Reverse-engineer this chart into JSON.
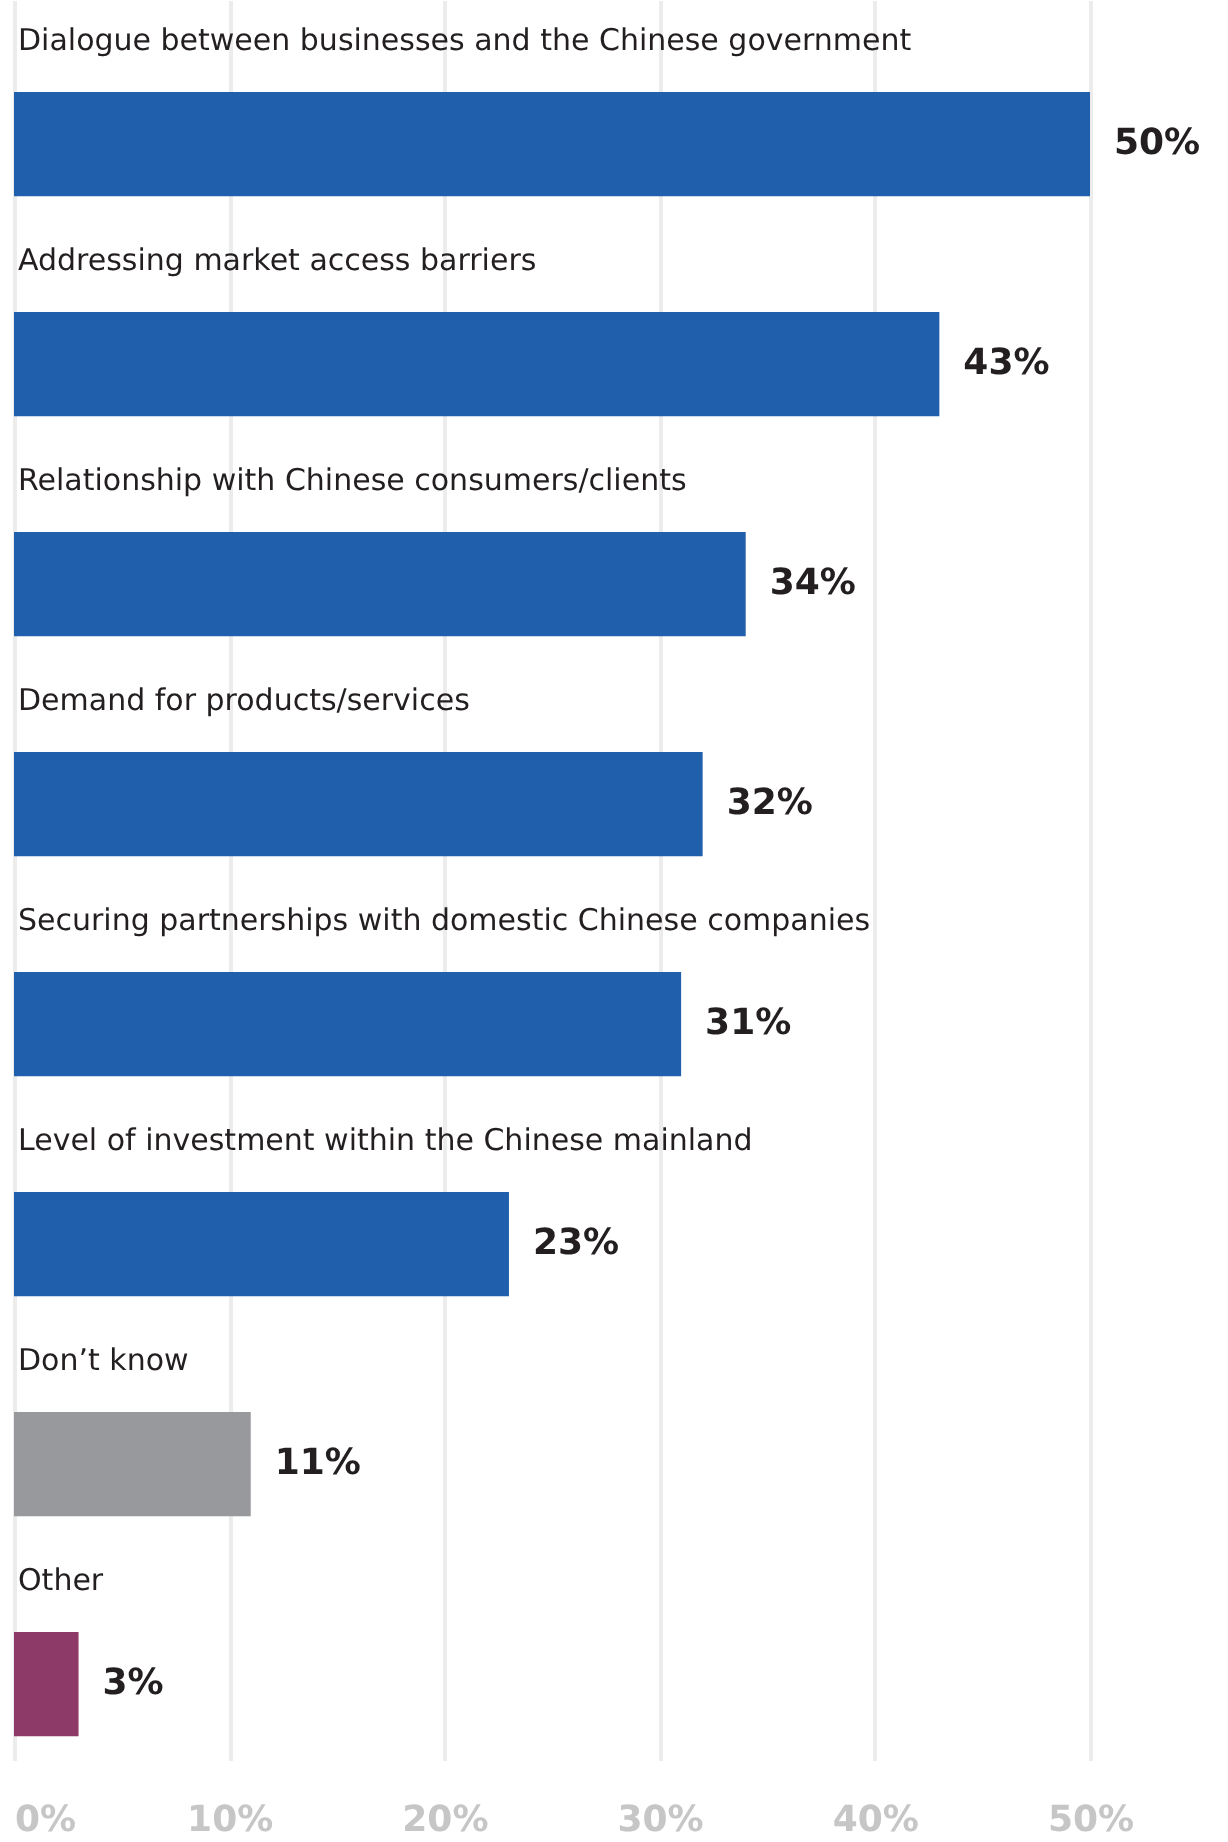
{
  "chart_data": {
    "type": "bar",
    "orientation": "horizontal",
    "categories": [
      "Dialogue between businesses and the Chinese government",
      "Addressing market access barriers",
      "Relationship with Chinese consumers/clients",
      "Demand for products/services",
      "Securing partnerships with domestic Chinese companies",
      "Level of investment within the Chinese mainland",
      "Don’t know",
      "Other"
    ],
    "values": [
      50,
      43,
      34,
      32,
      31,
      23,
      11,
      3
    ],
    "colors": [
      "#205fab",
      "#205fab",
      "#205fab",
      "#205fab",
      "#205fab",
      "#205fab",
      "#98999d",
      "#8e3a68"
    ],
    "value_labels": [
      "50%",
      "43%",
      "34%",
      "32%",
      "31%",
      "23%",
      "11%",
      "3%"
    ],
    "xlim": [
      0,
      50
    ],
    "xticks": [
      {
        "value": 0,
        "label": "0%"
      },
      {
        "value": 10,
        "label": "10%"
      },
      {
        "value": 20,
        "label": "20%"
      },
      {
        "value": 30,
        "label": "30%"
      },
      {
        "value": 40,
        "label": "40%"
      },
      {
        "value": 50,
        "label": "50%"
      }
    ],
    "grid": "x"
  }
}
